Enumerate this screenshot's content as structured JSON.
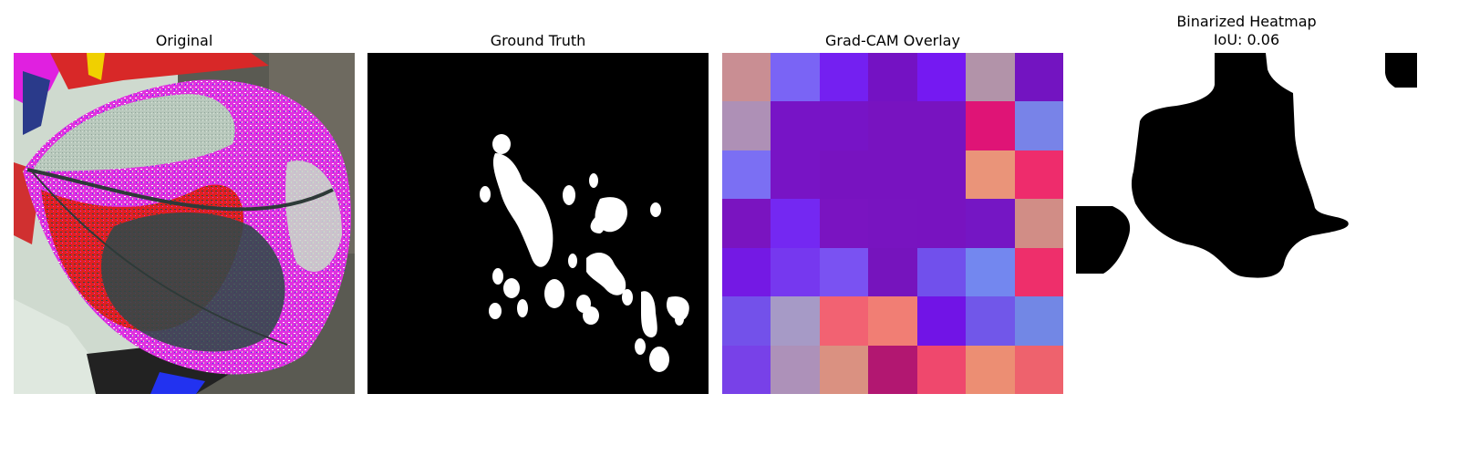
{
  "panels": {
    "original": {
      "title": "Original"
    },
    "ground_truth": {
      "title": "Ground Truth"
    },
    "gradcam": {
      "title": "Grad-CAM Overlay",
      "cells": [
        [
          "#c98e93",
          "#7a64f5",
          "#7420f1",
          "#7412c3",
          "#7519f2",
          "#b293a9",
          "#7314c1"
        ],
        [
          "#ae90b6",
          "#7714c6",
          "#7714c6",
          "#7813c0",
          "#7813c0",
          "#df1476",
          "#7883e8"
        ],
        [
          "#7b6ff3",
          "#7814c5",
          "#7813c0",
          "#7813c0",
          "#7813c0",
          "#ea9479",
          "#ee2c6c"
        ],
        [
          "#7a14c0",
          "#7428f2",
          "#7a14c1",
          "#7814c0",
          "#7813c0",
          "#7516c4",
          "#d18d86"
        ],
        [
          "#7419e4",
          "#7638ef",
          "#7a52f2",
          "#7614bd",
          "#7150ec",
          "#7387ef",
          "#ee2f6b"
        ],
        [
          "#7351ea",
          "#a69ac6",
          "#f26272",
          "#f17e74",
          "#7114e6",
          "#7157e9",
          "#7287e5"
        ],
        [
          "#7841e8",
          "#ad91b9",
          "#da9181",
          "#b21771",
          "#ef486d",
          "#ec8e73",
          "#ee626d"
        ]
      ]
    },
    "binarized": {
      "title_line1": "Binarized Heatmap",
      "title_line2": "IoU: 0.06"
    }
  }
}
